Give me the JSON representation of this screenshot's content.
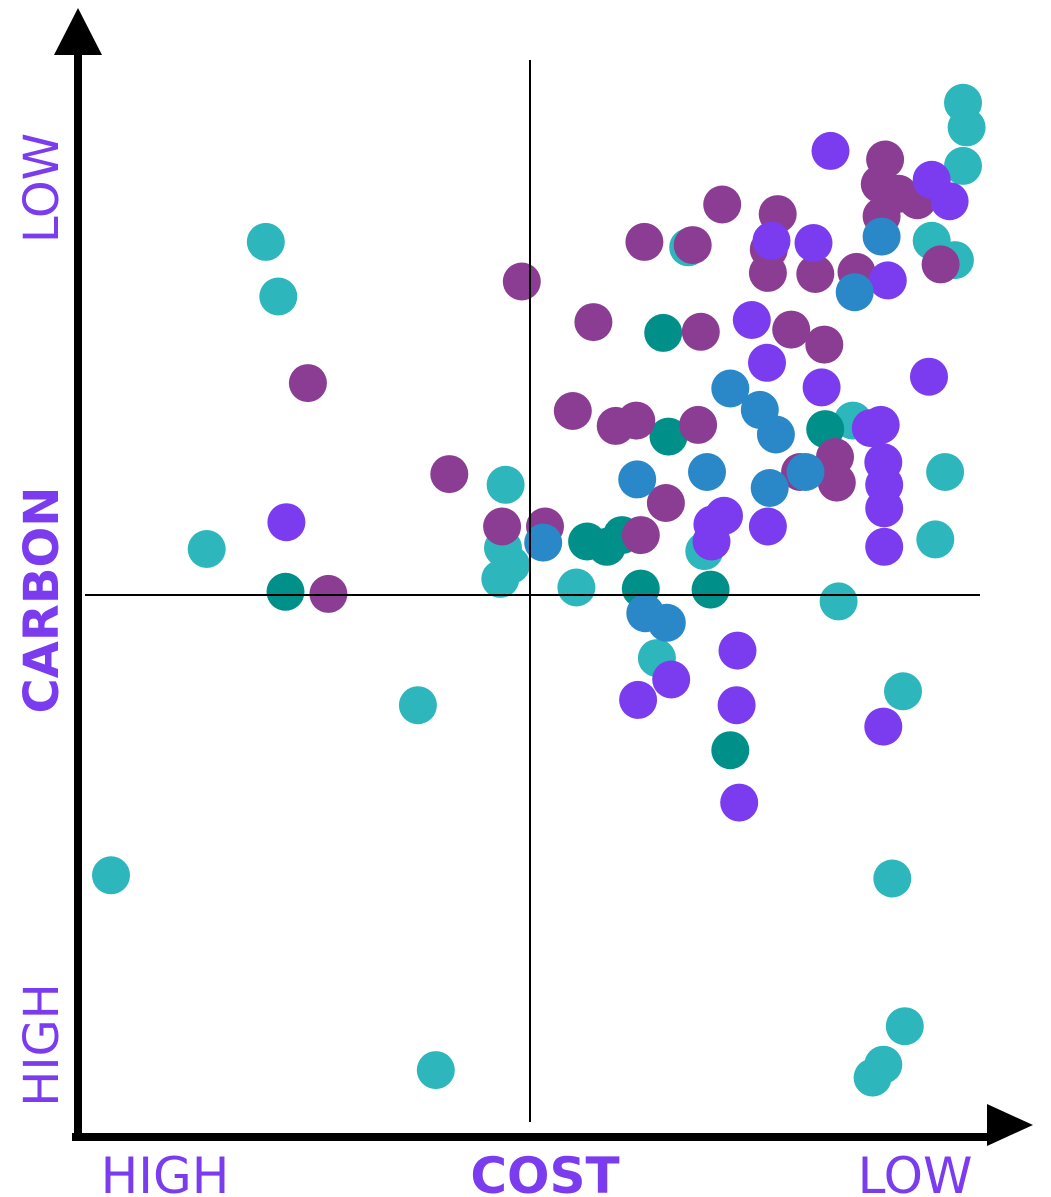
{
  "colors": {
    "teal_light": "#2db7bd",
    "teal_dark": "#019089",
    "plum": "#8a3d92",
    "violet": "#7b3cf0",
    "blue": "#2a88c9",
    "axis": "#000000",
    "label": "#7b3cf0"
  },
  "chart_data": {
    "type": "scatter",
    "xlabel": "COST",
    "ylabel": "CARBON",
    "x_low_end_label": "HIGH",
    "x_high_end_label": "LOW",
    "y_low_end_label": "HIGH",
    "y_high_end_label": "LOW",
    "xlim": [
      0,
      100
    ],
    "ylim": [
      0,
      100
    ],
    "quadrant_divider": {
      "x": 50,
      "y": 50
    },
    "grid": false,
    "legend": "none",
    "series": [
      {
        "color_key": "teal_light",
        "points": [
          [
            2.9,
            23.8
          ],
          [
            20.2,
            83.0
          ],
          [
            21.6,
            77.9
          ],
          [
            13.6,
            54.3
          ],
          [
            37.2,
            39.7
          ],
          [
            39.2,
            5.6
          ],
          [
            47.0,
            60.3
          ],
          [
            46.7,
            54.4
          ],
          [
            47.6,
            52.8
          ],
          [
            46.4,
            51.5
          ],
          [
            54.9,
            50.7
          ],
          [
            63.9,
            44.1
          ],
          [
            67.4,
            82.5
          ],
          [
            69.2,
            54.1
          ],
          [
            84.2,
            49.4
          ],
          [
            85.8,
            66.3
          ],
          [
            94.6,
            83.1
          ],
          [
            98.1,
            96.0
          ],
          [
            98.5,
            93.7
          ],
          [
            98.1,
            90.1
          ],
          [
            97.2,
            81.3
          ],
          [
            96.1,
            61.5
          ],
          [
            95.0,
            55.2
          ],
          [
            91.4,
            41.0
          ],
          [
            90.2,
            23.5
          ],
          [
            91.6,
            9.7
          ],
          [
            89.2,
            6.1
          ],
          [
            88.0,
            4.9
          ]
        ]
      },
      {
        "color_key": "teal_dark",
        "points": [
          [
            22.4,
            50.3
          ],
          [
            56.1,
            55.0
          ],
          [
            58.3,
            54.5
          ],
          [
            60.0,
            55.6
          ],
          [
            62.1,
            50.6
          ],
          [
            64.6,
            74.5
          ],
          [
            65.2,
            64.8
          ],
          [
            69.9,
            50.5
          ],
          [
            72.1,
            35.5
          ],
          [
            82.7,
            65.5
          ]
        ]
      },
      {
        "color_key": "plum",
        "points": [
          [
            24.9,
            69.8
          ],
          [
            27.2,
            50.1
          ],
          [
            40.7,
            61.3
          ],
          [
            46.6,
            56.4
          ],
          [
            48.8,
            79.3
          ],
          [
            51.4,
            56.4
          ],
          [
            54.5,
            67.2
          ],
          [
            56.8,
            75.5
          ],
          [
            59.3,
            65.8
          ],
          [
            61.6,
            66.3
          ],
          [
            62.1,
            55.6
          ],
          [
            62.5,
            83.0
          ],
          [
            64.9,
            58.6
          ],
          [
            67.9,
            82.7
          ],
          [
            68.5,
            65.9
          ],
          [
            68.8,
            74.6
          ],
          [
            71.2,
            86.5
          ],
          [
            76.4,
            82.3
          ],
          [
            77.4,
            85.6
          ],
          [
            76.3,
            80.1
          ],
          [
            78.9,
            74.8
          ],
          [
            79.9,
            61.5
          ],
          [
            81.6,
            80.0
          ],
          [
            82.6,
            73.4
          ],
          [
            83.8,
            62.9
          ],
          [
            84.0,
            60.5
          ],
          [
            86.2,
            80.2
          ],
          [
            89.0,
            85.4
          ],
          [
            88.8,
            88.4
          ],
          [
            89.4,
            90.7
          ],
          [
            90.9,
            87.5
          ],
          [
            93.0,
            86.9
          ],
          [
            95.6,
            80.9
          ]
        ]
      },
      {
        "color_key": "violet",
        "points": [
          [
            22.5,
            56.8
          ],
          [
            61.8,
            40.2
          ],
          [
            65.5,
            42.1
          ],
          [
            70.1,
            56.6
          ],
          [
            70.0,
            55.0
          ],
          [
            71.4,
            57.4
          ],
          [
            72.9,
            44.8
          ],
          [
            73.1,
            30.6
          ],
          [
            72.8,
            39.7
          ],
          [
            74.5,
            75.7
          ],
          [
            76.2,
            71.7
          ],
          [
            76.3,
            56.4
          ],
          [
            76.7,
            83.1
          ],
          [
            81.4,
            82.9
          ],
          [
            82.3,
            69.4
          ],
          [
            83.3,
            91.5
          ],
          [
            87.8,
            65.6
          ],
          [
            88.9,
            65.9
          ],
          [
            89.2,
            62.4
          ],
          [
            89.3,
            60.3
          ],
          [
            89.3,
            58.1
          ],
          [
            89.3,
            54.5
          ],
          [
            89.2,
            37.7
          ],
          [
            89.7,
            79.4
          ],
          [
            94.3,
            70.4
          ],
          [
            94.6,
            88.8
          ],
          [
            96.6,
            86.8
          ]
        ]
      },
      {
        "color_key": "blue",
        "points": [
          [
            51.2,
            54.9
          ],
          [
            61.7,
            60.8
          ],
          [
            62.6,
            48.3
          ],
          [
            65.0,
            47.4
          ],
          [
            69.5,
            61.5
          ],
          [
            72.1,
            69.3
          ],
          [
            75.4,
            67.3
          ],
          [
            76.5,
            60.0
          ],
          [
            77.2,
            65.0
          ],
          [
            80.5,
            61.5
          ],
          [
            86.0,
            78.3
          ],
          [
            89.0,
            83.5
          ]
        ]
      }
    ]
  }
}
